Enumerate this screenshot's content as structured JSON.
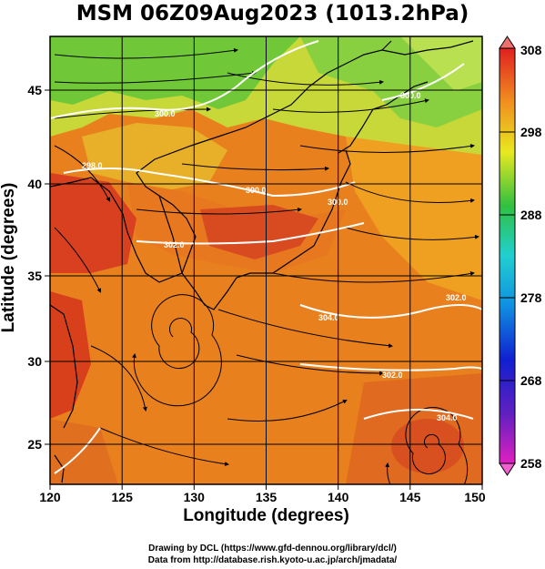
{
  "title": "MSM 06Z09Aug2023 (1013.2hPa)",
  "x_axis": {
    "label": "Longitude (degrees)",
    "ticks": [
      "120",
      "125",
      "130",
      "135",
      "140",
      "145",
      "150"
    ]
  },
  "y_axis": {
    "label": "Latitude  (degrees)",
    "ticks": [
      "25",
      "30",
      "35",
      "40",
      "45"
    ]
  },
  "colorbar": {
    "ticks": [
      "308",
      "298",
      "288",
      "278",
      "268",
      "258"
    ]
  },
  "contour_labels": [
    "300.0",
    "300.0",
    "302.0",
    "304.0",
    "302.0",
    "298.0",
    "300.0",
    "304.0",
    "302.0",
    "300.0"
  ],
  "footer": {
    "line1": "Drawing by DCL (https://www.gfd-dennou.org/library/dcl/)",
    "line2": "Data from http://database.rish.kyoto-u.ac.jp/arch/jmadata/"
  },
  "colors": {
    "warm": "#e8781e",
    "hot": "#d8301a",
    "mild": "#f0b020",
    "cool": "#b8d830",
    "green": "#40c040"
  }
}
